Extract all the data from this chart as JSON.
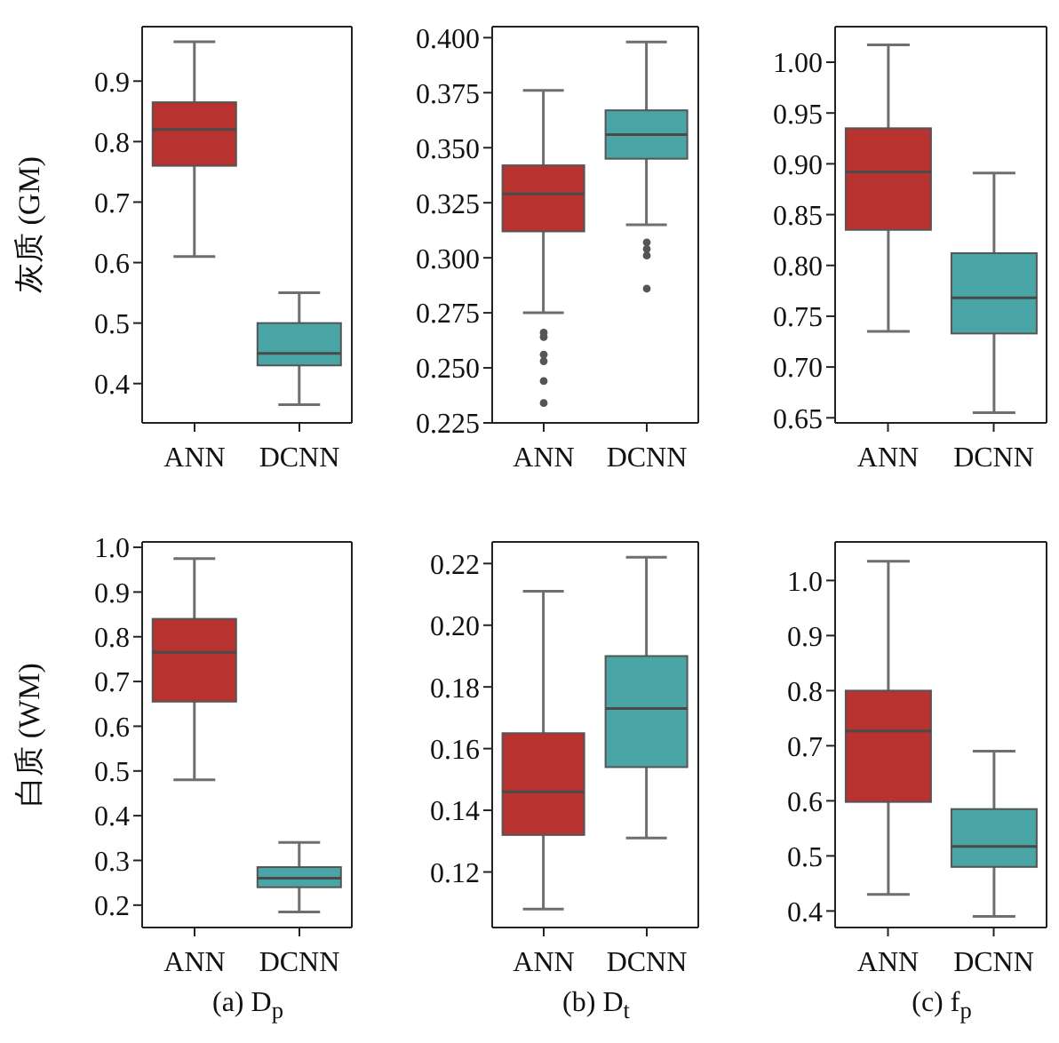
{
  "chart_data": [
    {
      "type": "box",
      "ylabel": "灰质 (GM)",
      "categories": [
        "ANN",
        "DCNN"
      ],
      "colors": [
        "#b83230",
        "#4aa6a6"
      ],
      "ylim": [
        0.335,
        0.99
      ],
      "yticks": [
        0.4,
        0.5,
        0.6,
        0.7,
        0.8,
        0.9
      ],
      "boxes": [
        {
          "low": 0.61,
          "q1": 0.76,
          "median": 0.82,
          "q3": 0.865,
          "high": 0.965
        },
        {
          "low": 0.365,
          "q1": 0.43,
          "median": 0.45,
          "q3": 0.5,
          "high": 0.55
        }
      ]
    },
    {
      "type": "box",
      "categories": [
        "ANN",
        "DCNN"
      ],
      "colors": [
        "#b83230",
        "#4aa6a6"
      ],
      "ylim": [
        0.225,
        0.405
      ],
      "yticks": [
        {
          "value": 0.225,
          "label": "0.225"
        },
        {
          "value": 0.25,
          "label": "0.250"
        },
        {
          "value": 0.275,
          "label": "0.275"
        },
        {
          "value": 0.3,
          "label": "0.300"
        },
        {
          "value": 0.325,
          "label": "0.325"
        },
        {
          "value": 0.35,
          "label": "0.350"
        },
        {
          "value": 0.375,
          "label": "0.375"
        },
        {
          "value": 0.4,
          "label": "0.400"
        }
      ],
      "boxes": [
        {
          "low": 0.275,
          "q1": 0.312,
          "median": 0.329,
          "q3": 0.342,
          "high": 0.376,
          "outliers": [
            0.266,
            0.264,
            0.256,
            0.253,
            0.244,
            0.234
          ]
        },
        {
          "low": 0.315,
          "q1": 0.345,
          "median": 0.356,
          "q3": 0.367,
          "high": 0.398,
          "outliers": [
            0.307,
            0.304,
            0.301,
            0.286
          ]
        }
      ]
    },
    {
      "type": "box",
      "categories": [
        "ANN",
        "DCNN"
      ],
      "colors": [
        "#b83230",
        "#4aa6a6"
      ],
      "ylim": [
        0.645,
        1.035
      ],
      "yticks": [
        0.65,
        {
          "value": 0.7,
          "label": "0.70"
        },
        0.75,
        {
          "value": 0.8,
          "label": "0.80"
        },
        0.85,
        {
          "value": 0.9,
          "label": "0.90"
        },
        0.95,
        {
          "value": 1,
          "label": "1.00"
        }
      ],
      "boxes": [
        {
          "low": 0.735,
          "q1": 0.835,
          "median": 0.892,
          "q3": 0.935,
          "high": 1.017
        },
        {
          "low": 0.655,
          "q1": 0.733,
          "median": 0.768,
          "q3": 0.812,
          "high": 0.891
        }
      ]
    },
    {
      "type": "box",
      "ylabel": "白质 (WM)",
      "xlabel": "(a) D$_{p}$",
      "categories": [
        "ANN",
        "DCNN"
      ],
      "colors": [
        "#b83230",
        "#4aa6a6"
      ],
      "ylim": [
        0.15,
        1.012
      ],
      "yticks": [
        0.2,
        0.3,
        0.4,
        0.5,
        0.6,
        0.7,
        0.8,
        0.9,
        {
          "value": 1,
          "label": "1.0"
        }
      ],
      "boxes": [
        {
          "low": 0.48,
          "q1": 0.655,
          "median": 0.765,
          "q3": 0.84,
          "high": 0.975
        },
        {
          "low": 0.185,
          "q1": 0.24,
          "median": 0.26,
          "q3": 0.285,
          "high": 0.34
        }
      ]
    },
    {
      "type": "box",
      "xlabel": "(b) D$_{t}$",
      "categories": [
        "ANN",
        "DCNN"
      ],
      "colors": [
        "#b83230",
        "#4aa6a6"
      ],
      "ylim": [
        0.102,
        0.227
      ],
      "yticks": [
        0.12,
        0.14,
        0.16,
        0.18,
        {
          "value": 0.2,
          "label": "0.20"
        },
        0.22
      ],
      "boxes": [
        {
          "low": 0.108,
          "q1": 0.132,
          "median": 0.146,
          "q3": 0.165,
          "high": 0.211
        },
        {
          "low": 0.131,
          "q1": 0.154,
          "median": 0.173,
          "q3": 0.19,
          "high": 0.222
        }
      ]
    },
    {
      "type": "box",
      "xlabel": "(c) f$_{p}$",
      "categories": [
        "ANN",
        "DCNN"
      ],
      "colors": [
        "#b83230",
        "#4aa6a6"
      ],
      "ylim": [
        0.37,
        1.07
      ],
      "yticks": [
        0.4,
        0.5,
        0.6,
        0.7,
        0.8,
        0.9,
        {
          "value": 1,
          "label": "1.0"
        }
      ],
      "boxes": [
        {
          "low": 0.43,
          "q1": 0.598,
          "median": 0.727,
          "q3": 0.8,
          "high": 1.035
        },
        {
          "low": 0.39,
          "q1": 0.48,
          "median": 0.517,
          "q3": 0.585,
          "high": 0.69
        }
      ]
    }
  ]
}
